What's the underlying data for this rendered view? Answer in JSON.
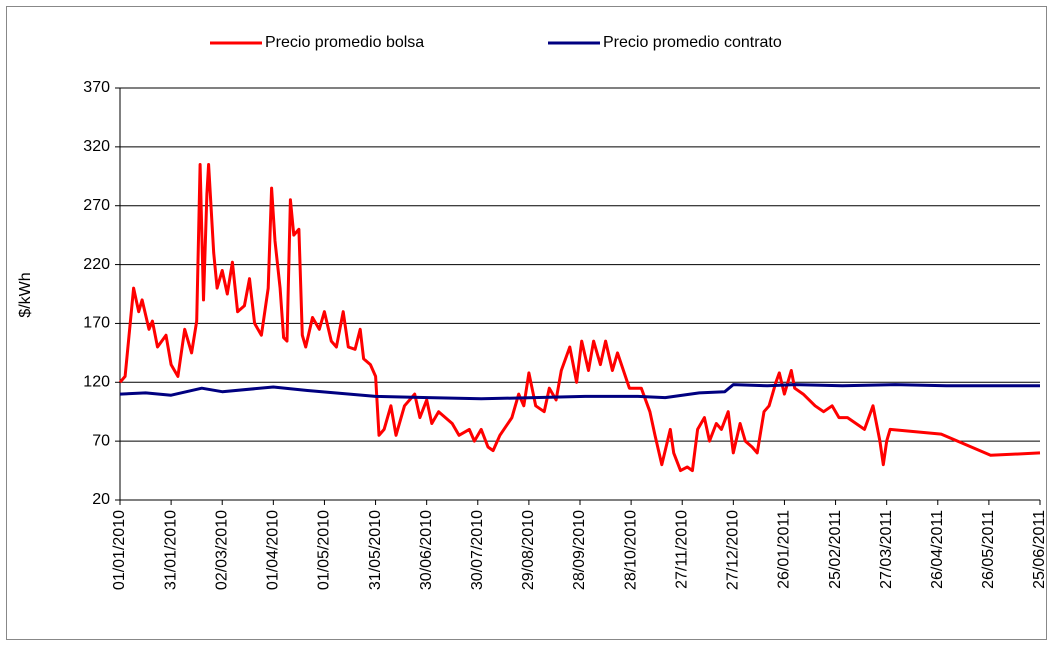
{
  "chart_data": {
    "type": "line",
    "y_label": "$/kWh",
    "ylim": [
      20,
      370
    ],
    "yticks": [
      20,
      70,
      120,
      170,
      220,
      270,
      320,
      370
    ],
    "grid": true,
    "xlim": [
      "01/01/2010",
      "25/06/2011"
    ],
    "xticks": [
      "01/01/2010",
      "31/01/2010",
      "02/03/2010",
      "01/04/2010",
      "01/05/2010",
      "31/05/2010",
      "30/06/2010",
      "30/07/2010",
      "29/08/2010",
      "28/09/2010",
      "28/10/2010",
      "27/11/2010",
      "27/12/2010",
      "26/01/2011",
      "25/02/2011",
      "27/03/2011",
      "26/04/2011",
      "26/05/2011",
      "25/06/2011"
    ],
    "legend": "top",
    "series": [
      {
        "name": "Precio promedio bolsa",
        "color": "#ff0000",
        "x": [
          "01/01/2010",
          "04/01/2010",
          "09/01/2010",
          "12/01/2010",
          "14/01/2010",
          "18/01/2010",
          "20/01/2010",
          "23/01/2010",
          "28/01/2010",
          "31/01/2010",
          "04/02/2010",
          "08/02/2010",
          "12/02/2010",
          "15/02/2010",
          "17/02/2010",
          "19/02/2010",
          "21/02/2010",
          "22/02/2010",
          "25/02/2010",
          "27/02/2010",
          "02/03/2010",
          "05/03/2010",
          "08/03/2010",
          "11/03/2010",
          "15/03/2010",
          "18/03/2010",
          "21/03/2010",
          "25/03/2010",
          "29/03/2010",
          "31/03/2010",
          "02/04/2010",
          "05/04/2010",
          "07/04/2010",
          "09/04/2010",
          "11/04/2010",
          "13/04/2010",
          "16/04/2010",
          "18/04/2010",
          "20/04/2010",
          "24/04/2010",
          "28/04/2010",
          "01/05/2010",
          "05/05/2010",
          "08/05/2010",
          "12/05/2010",
          "15/05/2010",
          "19/05/2010",
          "22/05/2010",
          "24/05/2010",
          "28/05/2010",
          "31/05/2010",
          "02/06/2010",
          "05/06/2010",
          "09/06/2010",
          "12/06/2010",
          "17/06/2010",
          "23/06/2010",
          "26/06/2010",
          "30/06/2010",
          "03/07/2010",
          "07/07/2010",
          "15/07/2010",
          "19/07/2010",
          "25/07/2010",
          "28/07/2010",
          "01/08/2010",
          "05/08/2010",
          "08/08/2010",
          "12/08/2010",
          "19/08/2010",
          "23/08/2010",
          "26/08/2010",
          "29/08/2010",
          "02/09/2010",
          "07/09/2010",
          "10/09/2010",
          "14/09/2010",
          "17/09/2010",
          "22/09/2010",
          "26/09/2010",
          "29/09/2010",
          "03/10/2010",
          "06/10/2010",
          "10/10/2010",
          "13/10/2010",
          "17/10/2010",
          "20/10/2010",
          "27/10/2010",
          "03/11/2010",
          "08/11/2010",
          "11/11/2010",
          "15/11/2010",
          "20/11/2010",
          "22/11/2010",
          "26/11/2010",
          "30/11/2010",
          "03/12/2010",
          "06/12/2010",
          "10/12/2010",
          "13/12/2010",
          "17/12/2010",
          "20/12/2010",
          "24/12/2010",
          "27/12/2010",
          "31/12/2010",
          "03/01/2011",
          "07/01/2011",
          "10/01/2011",
          "14/01/2011",
          "17/01/2011",
          "21/01/2011",
          "23/01/2011",
          "26/01/2011",
          "30/01/2011",
          "01/02/2011",
          "06/02/2011",
          "13/02/2011",
          "18/02/2011",
          "23/02/2011",
          "27/02/2011",
          "04/03/2011",
          "09/03/2011",
          "14/03/2011",
          "19/03/2011",
          "23/03/2011",
          "25/03/2011",
          "27/03/2011",
          "29/03/2011",
          "28/04/2011",
          "27/05/2011",
          "25/06/2011"
        ],
        "values": [
          120,
          125,
          200,
          180,
          190,
          165,
          172,
          150,
          160,
          135,
          125,
          165,
          145,
          172,
          305,
          190,
          280,
          305,
          230,
          200,
          215,
          195,
          222,
          180,
          185,
          208,
          170,
          160,
          200,
          285,
          240,
          200,
          158,
          155,
          275,
          245,
          250,
          160,
          150,
          175,
          165,
          180,
          155,
          150,
          180,
          150,
          148,
          165,
          140,
          135,
          125,
          75,
          80,
          100,
          75,
          100,
          110,
          90,
          105,
          85,
          95,
          85,
          75,
          80,
          70,
          80,
          65,
          62,
          75,
          90,
          110,
          100,
          128,
          100,
          95,
          115,
          105,
          130,
          150,
          120,
          155,
          130,
          155,
          135,
          155,
          130,
          145,
          115,
          115,
          95,
          75,
          50,
          80,
          60,
          45,
          48,
          45,
          80,
          90,
          70,
          85,
          80,
          95,
          60,
          85,
          70,
          65,
          60,
          95,
          100,
          120,
          128,
          110,
          130,
          115,
          110,
          100,
          95,
          100,
          90,
          90,
          85,
          80,
          100,
          70,
          50,
          70,
          80,
          76,
          58,
          60
        ]
      },
      {
        "name": "Precio promedio contrato",
        "color": "#000080",
        "x": [
          "01/01/2010",
          "16/01/2010",
          "31/01/2010",
          "18/02/2010",
          "02/03/2010",
          "01/04/2010",
          "21/04/2010",
          "31/05/2010",
          "01/07/2010",
          "01/08/2010",
          "01/09/2010",
          "01/10/2010",
          "01/11/2010",
          "17/11/2010",
          "07/12/2010",
          "22/12/2010",
          "27/12/2010",
          "16/01/2011",
          "01/02/2011",
          "01/03/2011",
          "01/04/2011",
          "01/05/2011",
          "25/06/2011"
        ],
        "values": [
          110,
          111,
          109,
          115,
          112,
          116,
          113,
          108,
          107,
          106,
          107,
          108,
          108,
          107,
          111,
          112,
          118,
          117,
          118,
          117,
          118,
          117,
          117
        ]
      }
    ]
  }
}
